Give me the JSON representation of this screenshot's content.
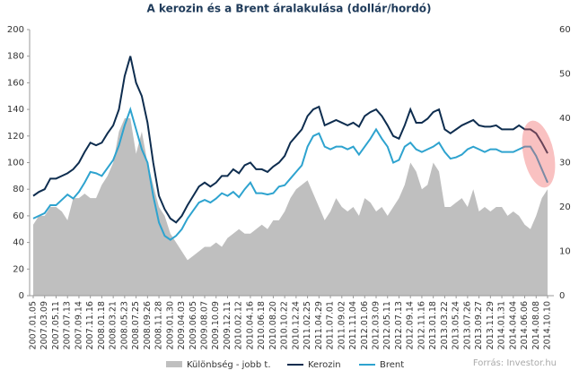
{
  "chart_data": {
    "type": "line",
    "title": "A kerozin  és a Brent áralakulása (dollár/hordó)",
    "source": "Forrás: Investor.hu",
    "categories": [
      "2007.01.05",
      null,
      "2007.03.09",
      null,
      "2007.05.11",
      null,
      "2007.07.13",
      null,
      "2007.09.14",
      null,
      "2007.11.16",
      null,
      "2008.01.18",
      null,
      "2008.03.21",
      null,
      "2008.05.23",
      null,
      "2008.07.25",
      null,
      "2008.09.26",
      null,
      "2008.11.28",
      null,
      "2009.01.30",
      null,
      "2009.04.03",
      null,
      "2009.06.05",
      null,
      "2009.08.07",
      null,
      "2009.10.09",
      null,
      "2009.12.11",
      null,
      "2010.02.12",
      null,
      "2010.04.16",
      null,
      "2010.06.18",
      null,
      "2010.08.20",
      null,
      "2010.10.22",
      null,
      "2010.12.24",
      null,
      "2011.02.25",
      null,
      "2011.04.29",
      null,
      "2011.07.01",
      null,
      "2011.09.02",
      null,
      "2011.11.04",
      null,
      "2012.01.06",
      null,
      "2012.03.09",
      null,
      "2012.05.11",
      null,
      "2012.07.13",
      null,
      "2012.09.14",
      null,
      "2012.11.16",
      null,
      "2013.01.18",
      null,
      "2013.03.22",
      null,
      "2013.05.24",
      null,
      "2013.07.26",
      null,
      "2013.09.27",
      null,
      "2013.11.29",
      null,
      "2014.01.31",
      null,
      "2014.04.04",
      null,
      "2014.06.06",
      null,
      "2014.08.08",
      null,
      "2014.10.10"
    ],
    "series": [
      {
        "name": "Különbség - jobb t.",
        "color": "#bfbfbf",
        "axis": "y2",
        "kind": "area",
        "values": [
          16,
          18,
          18,
          20,
          20,
          19,
          17,
          22,
          22,
          23,
          22,
          22,
          25,
          27,
          30,
          37,
          40,
          40,
          32,
          37,
          30,
          25,
          20,
          18,
          14,
          12,
          10,
          8,
          9,
          10,
          11,
          11,
          12,
          11,
          13,
          14,
          15,
          14,
          14,
          15,
          16,
          15,
          17,
          17,
          19,
          22,
          24,
          25,
          26,
          23,
          20,
          17,
          19,
          22,
          20,
          19,
          20,
          18,
          22,
          21,
          19,
          20,
          18,
          20,
          22,
          25,
          30,
          28,
          24,
          25,
          30,
          28,
          20,
          20,
          21,
          22,
          20,
          24,
          19,
          20,
          19,
          20,
          20,
          18,
          19,
          18,
          16,
          15,
          18,
          22,
          24
        ]
      },
      {
        "name": "Kerozin",
        "color": "#0e2d4f",
        "values": [
          75,
          78,
          80,
          88,
          88,
          90,
          92,
          95,
          100,
          108,
          115,
          113,
          115,
          122,
          128,
          140,
          165,
          180,
          160,
          150,
          130,
          100,
          75,
          65,
          58,
          55,
          60,
          68,
          75,
          82,
          85,
          82,
          85,
          90,
          90,
          95,
          92,
          98,
          100,
          95,
          95,
          93,
          97,
          100,
          105,
          115,
          120,
          125,
          135,
          140,
          142,
          128,
          130,
          132,
          130,
          128,
          130,
          127,
          135,
          138,
          140,
          135,
          128,
          120,
          118,
          128,
          140,
          130,
          130,
          133,
          138,
          140,
          125,
          122,
          125,
          128,
          130,
          132,
          128,
          127,
          127,
          128,
          125,
          125,
          125,
          128,
          125,
          125,
          122,
          115,
          107
        ]
      },
      {
        "name": "Brent",
        "color": "#2ea3cf",
        "values": [
          58,
          60,
          62,
          68,
          68,
          72,
          76,
          73,
          78,
          85,
          93,
          92,
          90,
          96,
          102,
          113,
          128,
          140,
          125,
          110,
          100,
          75,
          55,
          45,
          42,
          45,
          50,
          58,
          64,
          70,
          72,
          70,
          73,
          77,
          75,
          78,
          74,
          80,
          85,
          77,
          77,
          76,
          77,
          82,
          83,
          88,
          93,
          98,
          112,
          120,
          122,
          112,
          110,
          112,
          112,
          110,
          112,
          106,
          112,
          118,
          125,
          118,
          112,
          100,
          102,
          112,
          115,
          110,
          108,
          110,
          112,
          115,
          108,
          103,
          104,
          106,
          110,
          112,
          110,
          108,
          110,
          110,
          108,
          108,
          108,
          110,
          112,
          112,
          105,
          95,
          85
        ]
      }
    ],
    "ylim": [
      0,
      200
    ],
    "yticks": [
      0,
      20,
      40,
      60,
      80,
      100,
      120,
      140,
      160,
      180,
      200
    ],
    "y2lim": [
      0,
      60
    ],
    "y2ticks": [
      0,
      10,
      20,
      30,
      40,
      50,
      60
    ],
    "legend": "bottom"
  }
}
